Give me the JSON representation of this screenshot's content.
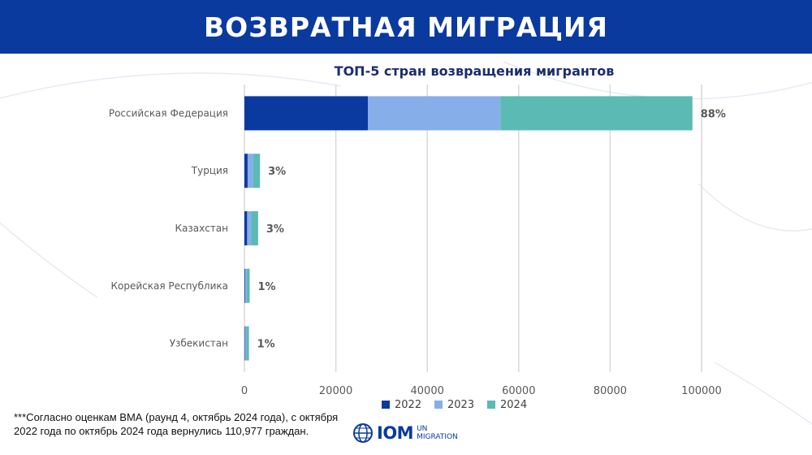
{
  "header": {
    "title": "ВОЗВРАТНАЯ МИГРАЦИЯ"
  },
  "colors": {
    "header_bg": "#0a3a9e",
    "series_2022": "#0a3aa0",
    "series_2023": "#86aee8",
    "series_2024": "#5bbab3"
  },
  "chart_data": {
    "type": "bar",
    "orientation": "horizontal",
    "stacked": true,
    "title": "ТОП-5 стран возвращения мигрантов",
    "categories": [
      "Российская Федерация",
      "Турция",
      "Казахстан",
      "Корейская Республика",
      "Узбекистан"
    ],
    "series": [
      {
        "name": "2022",
        "color": "#0a3aa0",
        "values": [
          27000,
          700,
          600,
          150,
          120
        ]
      },
      {
        "name": "2023",
        "color": "#86aee8",
        "values": [
          29000,
          1200,
          900,
          350,
          300
        ]
      },
      {
        "name": "2024",
        "color": "#5bbab3",
        "values": [
          42000,
          1500,
          1500,
          650,
          580
        ]
      }
    ],
    "data_labels": [
      "88%",
      "3%",
      "3%",
      "1%",
      "1%"
    ],
    "xlim": [
      0,
      100000
    ],
    "xticks": [
      "0",
      "20000",
      "40000",
      "60000",
      "80000",
      "100000"
    ],
    "grid": true,
    "legend_position": "bottom"
  },
  "footnote": {
    "text": "***Согласно оценкам ВМА (раунд 4, октябрь 2024 года), с октября 2022 года по октябрь 2024 года вернулись 110,977 граждан."
  },
  "logo": {
    "name": "IOM",
    "sub_line1": "UN",
    "sub_line2": "MIGRATION"
  }
}
